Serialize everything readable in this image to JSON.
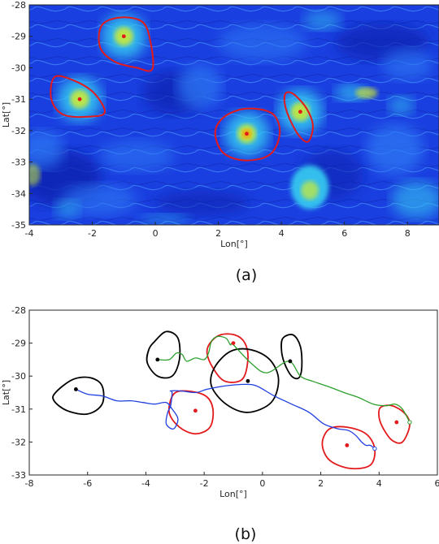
{
  "chart_data": [
    {
      "type": "heatmap",
      "caption": "(a)",
      "xlabel": "Lon[°]",
      "ylabel": "Lat[°]",
      "xlim": [
        -4,
        9
      ],
      "ylim": [
        -35,
        -28
      ],
      "xticks": [
        -4,
        -2,
        0,
        2,
        4,
        6,
        8
      ],
      "yticks": [
        -35,
        -34,
        -33,
        -32,
        -31,
        -30,
        -29,
        -28
      ],
      "colors": {
        "background": "#1a3fe0",
        "dark": "#1020b0",
        "mid": "#2e7bf5",
        "light": "#35c6f0",
        "hot": "#c8e93a",
        "core": "#ff9a00",
        "boundary": "#e31a1c",
        "center": "#e31a1c"
      },
      "eddy_centers": [
        {
          "lon": -1.0,
          "lat": -29.0
        },
        {
          "lon": -2.4,
          "lat": -31.0
        },
        {
          "lon": 2.9,
          "lat": -32.1
        },
        {
          "lon": 4.6,
          "lat": -31.4
        }
      ],
      "eddy_boundaries": [
        [
          [
            -1.7,
            -28.65
          ],
          [
            -1.1,
            -28.4
          ],
          [
            -0.4,
            -28.55
          ],
          [
            -0.15,
            -29.2
          ],
          [
            -0.1,
            -30.05
          ],
          [
            -0.6,
            -30.0
          ],
          [
            -1.3,
            -29.8
          ],
          [
            -1.75,
            -29.35
          ]
        ],
        [
          [
            -3.2,
            -30.3
          ],
          [
            -2.6,
            -30.4
          ],
          [
            -1.95,
            -30.8
          ],
          [
            -1.6,
            -31.4
          ],
          [
            -2.0,
            -31.55
          ],
          [
            -2.9,
            -31.5
          ],
          [
            -3.3,
            -31.0
          ]
        ],
        [
          [
            1.9,
            -32.05
          ],
          [
            2.2,
            -31.55
          ],
          [
            2.9,
            -31.3
          ],
          [
            3.7,
            -31.45
          ],
          [
            3.95,
            -32.05
          ],
          [
            3.65,
            -32.75
          ],
          [
            2.85,
            -32.95
          ],
          [
            2.15,
            -32.7
          ]
        ],
        [
          [
            4.15,
            -30.8
          ],
          [
            4.4,
            -30.85
          ],
          [
            4.8,
            -31.3
          ],
          [
            5.0,
            -31.85
          ],
          [
            4.85,
            -32.35
          ],
          [
            4.55,
            -32.15
          ],
          [
            4.25,
            -31.6
          ],
          [
            4.1,
            -31.1
          ]
        ]
      ]
    },
    {
      "type": "line",
      "caption": "(b)",
      "xlabel": "Lon[°]",
      "ylabel": "Lat[°]",
      "xlim": [
        -8,
        6
      ],
      "ylim": [
        -33,
        -28
      ],
      "xticks": [
        -8,
        -6,
        -4,
        -2,
        0,
        2,
        4,
        6
      ],
      "yticks": [
        -33,
        -32,
        -31,
        -30,
        -29,
        -28
      ],
      "series": [
        {
          "kind": "initial-eddy-boundary",
          "color": "#e31a1c",
          "points": [
            [
              -1.8,
              -29.0
            ],
            [
              -1.45,
              -28.75
            ],
            [
              -0.95,
              -28.75
            ],
            [
              -0.6,
              -29.0
            ],
            [
              -0.5,
              -29.5
            ],
            [
              -0.7,
              -30.1
            ],
            [
              -1.3,
              -30.15
            ],
            [
              -1.7,
              -29.75
            ],
            [
              -1.9,
              -29.3
            ]
          ]
        },
        {
          "kind": "initial-eddy-boundary",
          "color": "#e31a1c",
          "points": [
            [
              -3.05,
              -30.55
            ],
            [
              -2.6,
              -30.45
            ],
            [
              -1.95,
              -30.6
            ],
            [
              -1.7,
              -31.0
            ],
            [
              -1.8,
              -31.55
            ],
            [
              -2.3,
              -31.75
            ],
            [
              -2.85,
              -31.55
            ],
            [
              -3.2,
              -31.1
            ]
          ]
        },
        {
          "kind": "initial-eddy-boundary",
          "color": "#e31a1c",
          "points": [
            [
              2.3,
              -31.6
            ],
            [
              2.9,
              -31.55
            ],
            [
              3.55,
              -31.75
            ],
            [
              3.85,
              -32.2
            ],
            [
              3.7,
              -32.7
            ],
            [
              3.0,
              -32.8
            ],
            [
              2.3,
              -32.55
            ],
            [
              2.05,
              -32.05
            ]
          ]
        },
        {
          "kind": "initial-eddy-boundary",
          "color": "#e31a1c",
          "points": [
            [
              4.05,
              -30.95
            ],
            [
              4.45,
              -30.9
            ],
            [
              4.9,
              -31.15
            ],
            [
              5.05,
              -31.5
            ],
            [
              4.8,
              -32.0
            ],
            [
              4.45,
              -31.95
            ],
            [
              4.15,
              -31.6
            ],
            [
              4.0,
              -31.25
            ]
          ]
        },
        {
          "kind": "final-eddy-boundary",
          "color": "#000000",
          "points": [
            [
              -3.7,
              -28.95
            ],
            [
              -3.3,
              -28.65
            ],
            [
              -2.9,
              -28.85
            ],
            [
              -2.85,
              -29.5
            ],
            [
              -3.1,
              -30.0
            ],
            [
              -3.6,
              -30.0
            ],
            [
              -3.95,
              -29.6
            ],
            [
              -3.9,
              -29.2
            ]
          ]
        },
        {
          "kind": "final-eddy-boundary",
          "color": "#000000",
          "points": [
            [
              -7.1,
              -30.5
            ],
            [
              -6.5,
              -30.1
            ],
            [
              -5.9,
              -30.05
            ],
            [
              -5.5,
              -30.3
            ],
            [
              -5.5,
              -30.85
            ],
            [
              -6.0,
              -31.15
            ],
            [
              -6.7,
              -31.05
            ],
            [
              -7.15,
              -30.75
            ]
          ]
        },
        {
          "kind": "final-eddy-boundary",
          "color": "#000000",
          "points": [
            [
              -1.65,
              -29.75
            ],
            [
              -1.1,
              -29.25
            ],
            [
              -0.4,
              -29.2
            ],
            [
              0.25,
              -29.5
            ],
            [
              0.55,
              -30.1
            ],
            [
              0.3,
              -30.8
            ],
            [
              -0.5,
              -31.1
            ],
            [
              -1.25,
              -30.85
            ],
            [
              -1.75,
              -30.3
            ]
          ]
        },
        {
          "kind": "final-eddy-boundary",
          "color": "#000000",
          "points": [
            [
              0.7,
              -28.85
            ],
            [
              1.05,
              -28.75
            ],
            [
              1.3,
              -29.1
            ],
            [
              1.35,
              -29.7
            ],
            [
              1.25,
              -30.05
            ],
            [
              1.0,
              -30.0
            ],
            [
              0.75,
              -29.6
            ],
            [
              0.65,
              -29.2
            ]
          ]
        },
        {
          "kind": "trajectory",
          "color": "#2ca02c",
          "points": [
            [
              -3.6,
              -29.5
            ],
            [
              -3.2,
              -29.5
            ],
            [
              -2.95,
              -29.3
            ],
            [
              -2.75,
              -29.35
            ],
            [
              -2.6,
              -29.55
            ],
            [
              -2.3,
              -29.45
            ],
            [
              -2.0,
              -29.5
            ],
            [
              -1.85,
              -29.3
            ],
            [
              -1.75,
              -28.95
            ],
            [
              -1.55,
              -28.8
            ],
            [
              -1.25,
              -28.85
            ],
            [
              -1.1,
              -29.05
            ],
            [
              -1.0,
              -29.05
            ],
            [
              -0.4,
              -29.6
            ],
            [
              0.15,
              -29.9
            ],
            [
              0.9,
              -29.55
            ],
            [
              1.3,
              -30.0
            ],
            [
              1.7,
              -30.15
            ],
            [
              2.2,
              -30.3
            ],
            [
              2.8,
              -30.5
            ],
            [
              3.3,
              -30.65
            ],
            [
              3.8,
              -30.85
            ],
            [
              4.25,
              -30.9
            ],
            [
              4.55,
              -30.85
            ],
            [
              4.8,
              -31.0
            ],
            [
              5.05,
              -31.4
            ]
          ]
        },
        {
          "kind": "trajectory",
          "color": "#1f3fe0",
          "points": [
            [
              -6.4,
              -30.4
            ],
            [
              -6.0,
              -30.55
            ],
            [
              -5.5,
              -30.6
            ],
            [
              -5.0,
              -30.75
            ],
            [
              -4.5,
              -30.75
            ],
            [
              -4.1,
              -30.8
            ],
            [
              -3.7,
              -30.85
            ],
            [
              -3.3,
              -30.8
            ],
            [
              -3.1,
              -31.0
            ],
            [
              -2.9,
              -31.3
            ],
            [
              -3.05,
              -31.6
            ],
            [
              -3.3,
              -31.45
            ],
            [
              -3.25,
              -31.1
            ],
            [
              -3.15,
              -30.9
            ],
            [
              -3.1,
              -30.5
            ],
            [
              -3.15,
              -30.45
            ],
            [
              -2.8,
              -30.45
            ],
            [
              -2.3,
              -30.5
            ],
            [
              -1.9,
              -30.4
            ],
            [
              -1.3,
              -30.3
            ],
            [
              -0.6,
              -30.25
            ],
            [
              -0.2,
              -30.3
            ],
            [
              0.4,
              -30.6
            ],
            [
              1.0,
              -30.85
            ],
            [
              1.6,
              -31.1
            ],
            [
              2.1,
              -31.45
            ],
            [
              2.6,
              -31.6
            ],
            [
              2.95,
              -31.65
            ],
            [
              3.2,
              -31.8
            ],
            [
              3.4,
              -32.0
            ],
            [
              3.55,
              -32.1
            ],
            [
              3.7,
              -32.1
            ],
            [
              3.85,
              -32.2
            ]
          ]
        }
      ],
      "initial_centers": {
        "color": "#e31a1c",
        "points": [
          [
            -1.0,
            -29.0
          ],
          [
            -2.3,
            -31.05
          ],
          [
            2.9,
            -32.1
          ],
          [
            4.6,
            -31.4
          ]
        ]
      },
      "final_centers": {
        "color": "#000000",
        "points": [
          [
            -3.6,
            -29.5
          ],
          [
            -6.4,
            -30.4
          ],
          [
            -0.5,
            -30.15
          ],
          [
            0.95,
            -29.55
          ]
        ]
      }
    }
  ]
}
